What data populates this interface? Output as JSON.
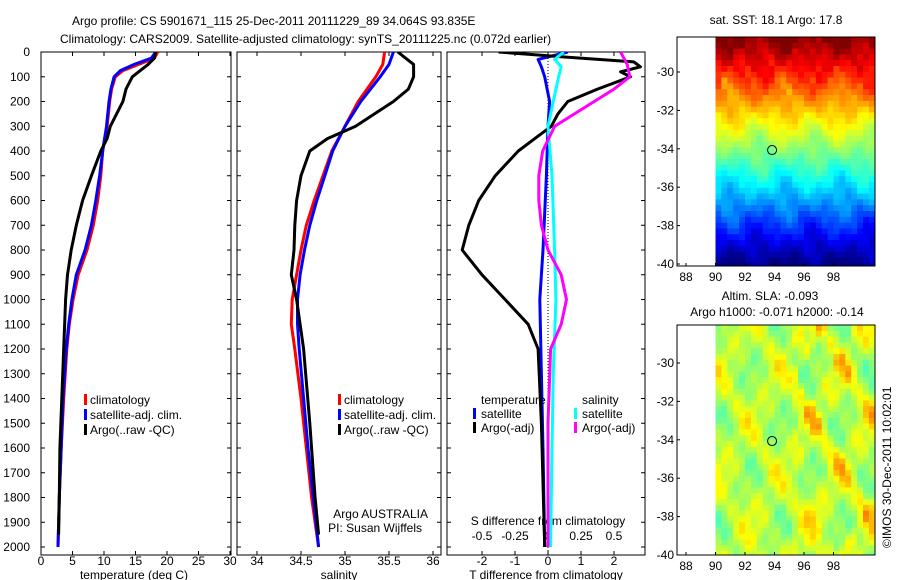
{
  "title": {
    "line1": "Argo profile: CS 5901671_115 25-Dec-2011 20111229_89 34.064S 93.835E",
    "line2": "Climatology: CARS2009. Satellite-adjusted climatology: synTS_20111225.nc (0.072d earlier)"
  },
  "depth_ticks": [
    "0",
    "100",
    "200",
    "300",
    "400",
    "500",
    "600",
    "700",
    "800",
    "900",
    "1000",
    "1100",
    "1200",
    "1300",
    "1400",
    "1500",
    "1600",
    "1700",
    "1800",
    "1900",
    "2000"
  ],
  "colors": {
    "climatology": "#ff0000",
    "satellite": "#0000ff",
    "argo": "#000000",
    "sal_satellite": "#00ffff",
    "sal_argo": "#ff00ff"
  },
  "chart_data": [
    {
      "type": "line",
      "title": "",
      "xlabel": "temperature (deg C)",
      "ylabel": "depth",
      "xlim": [
        -1.5,
        31.5
      ],
      "ylim": [
        2030,
        0
      ],
      "xticks": [
        "0",
        "5",
        "10",
        "15",
        "20",
        "25",
        "30"
      ],
      "legend": [
        "climatology",
        "satellite-adj. clim.",
        "Argo(..raw -QC)"
      ],
      "series": [
        {
          "name": "climatology",
          "color": "#ff0000",
          "depth": [
            0,
            25,
            50,
            75,
            100,
            150,
            200,
            300,
            350,
            400,
            500,
            600,
            700,
            800,
            900,
            1000,
            1100,
            1200,
            1400,
            1600,
            1800,
            2000
          ],
          "values": [
            18.5,
            18,
            15.5,
            13,
            11.8,
            11.2,
            10.9,
            10.5,
            10.1,
            9.8,
            9.5,
            9,
            8.3,
            7.3,
            5.9,
            5.1,
            4.5,
            4.1,
            3.6,
            3.2,
            2.9,
            2.7
          ]
        },
        {
          "name": "satellite-adj. clim.",
          "color": "#0000ff",
          "depth": [
            0,
            25,
            50,
            75,
            100,
            150,
            200,
            300,
            350,
            400,
            500,
            600,
            700,
            800,
            900,
            1000,
            1100,
            1200,
            1400,
            1600,
            1800,
            2000
          ],
          "values": [
            18.2,
            17.5,
            14.8,
            12.6,
            11.6,
            11.1,
            10.8,
            10.4,
            10.1,
            9.8,
            9.3,
            8.7,
            8.0,
            7.0,
            5.6,
            4.9,
            4.4,
            4.0,
            3.5,
            3.2,
            2.9,
            2.7
          ]
        },
        {
          "name": "Argo(..raw -QC)",
          "color": "#000000",
          "depth": [
            0,
            25,
            50,
            100,
            150,
            200,
            250,
            300,
            350,
            400,
            500,
            600,
            700,
            800,
            900,
            1000,
            1200,
            1400,
            1600,
            1800,
            1950
          ],
          "values": [
            18.2,
            18,
            17,
            14.5,
            13.5,
            13,
            12,
            11,
            10.5,
            9.5,
            8,
            6.6,
            5.6,
            4.8,
            4.2,
            3.9,
            3.6,
            3.3,
            3.0,
            2.9,
            2.8
          ]
        }
      ]
    },
    {
      "type": "line",
      "xlabel": "salinity",
      "xlim": [
        33.77,
        36.1
      ],
      "ylim": [
        2030,
        0
      ],
      "xticks": [
        "34",
        "34.5",
        "35",
        "35.5",
        "36"
      ],
      "legend": [
        "climatology",
        "satellite-adj. clim.",
        "Argo(..raw -QC)"
      ],
      "annotation": [
        "Argo AUSTRALIA",
        "PI: Susan Wijffels"
      ],
      "series": [
        {
          "name": "climatology",
          "color": "#ff0000",
          "depth": [
            0,
            50,
            100,
            200,
            300,
            400,
            500,
            600,
            700,
            800,
            900,
            1000,
            1100,
            1200,
            1400,
            1600,
            1800,
            2000
          ],
          "values": [
            35.45,
            35.43,
            35.35,
            35.15,
            35.0,
            34.85,
            34.75,
            34.65,
            34.56,
            34.5,
            34.45,
            34.4,
            34.39,
            34.43,
            34.5,
            34.56,
            34.62,
            34.7
          ]
        },
        {
          "name": "satellite-adj. clim.",
          "color": "#0000ff",
          "depth": [
            0,
            50,
            100,
            200,
            300,
            400,
            500,
            600,
            700,
            800,
            900,
            1000,
            1100,
            1200,
            1400,
            1600,
            1800,
            2000
          ],
          "values": [
            35.55,
            35.5,
            35.4,
            35.18,
            35.0,
            34.86,
            34.77,
            34.68,
            34.6,
            34.54,
            34.49,
            34.46,
            34.46,
            34.48,
            34.53,
            34.58,
            34.64,
            34.7
          ]
        },
        {
          "name": "Argo(..raw -QC)",
          "color": "#000000",
          "depth": [
            0,
            50,
            100,
            150,
            200,
            300,
            350,
            400,
            500,
            600,
            700,
            800,
            900,
            1000,
            1200,
            1500,
            1800,
            1950
          ],
          "values": [
            35.6,
            35.78,
            35.78,
            35.72,
            35.55,
            35.12,
            34.8,
            34.6,
            34.5,
            34.45,
            34.43,
            34.42,
            34.39,
            34.45,
            34.53,
            34.6,
            34.66,
            34.7
          ]
        }
      ]
    },
    {
      "type": "line",
      "xlabel": "T difference from climatology",
      "x2label": "S difference from climatology",
      "xlim": [
        -3.05,
        2.95
      ],
      "x2lim": [
        -0.7625,
        0.7375
      ],
      "ylim": [
        2030,
        0
      ],
      "xticks": [
        "-2",
        "-1",
        "0",
        "1",
        "2"
      ],
      "x2ticks": [
        "-0.5",
        "-0.25",
        "0",
        "0.25",
        "0.5"
      ],
      "legend_temperature": {
        "heading": "temperature",
        "items": [
          "satellite",
          "Argo(-adj)"
        ]
      },
      "legend_salinity": {
        "heading": "salinity",
        "items": [
          "satellite",
          "Argo(-adj)"
        ]
      },
      "series": [
        {
          "name": "temperature satellite",
          "color": "#0000ff",
          "axis": "T",
          "depth": [
            0,
            30,
            60,
            100,
            200,
            300,
            500,
            800,
            1000,
            1300,
            1600,
            2000
          ],
          "values": [
            0.6,
            -0.3,
            -0.2,
            -0.1,
            0.05,
            0,
            -0.05,
            -0.15,
            -0.25,
            -0.2,
            -0.15,
            -0.1
          ]
        },
        {
          "name": "temperature Argo(-adj)",
          "color": "#000000",
          "axis": "T",
          "depth": [
            0,
            20,
            40,
            60,
            80,
            100,
            150,
            200,
            250,
            300,
            350,
            400,
            500,
            600,
            700,
            800,
            900,
            1000,
            1100,
            1200,
            1500,
            2000
          ],
          "values": [
            -1.5,
            0.5,
            2.6,
            2.8,
            2.2,
            2.5,
            1.5,
            0.6,
            0.3,
            0.1,
            -0.4,
            -0.9,
            -1.6,
            -2.1,
            -2.4,
            -2.6,
            -2.0,
            -1.3,
            -0.6,
            -0.3,
            -0.2,
            -0.1
          ]
        },
        {
          "name": "salinity satellite",
          "color": "#00ffff",
          "axis": "S",
          "depth": [
            0,
            30,
            60,
            100,
            200,
            300,
            500,
            800,
            1000,
            1300,
            1600,
            2000
          ],
          "values": [
            0.12,
            0.05,
            0.1,
            0.08,
            0.04,
            0.0,
            0.03,
            0.05,
            0.06,
            0.04,
            0.03,
            0.02
          ]
        },
        {
          "name": "salinity Argo(-adj)",
          "color": "#ff00ff",
          "axis": "S",
          "depth": [
            0,
            50,
            100,
            150,
            200,
            250,
            300,
            400,
            500,
            600,
            700,
            800,
            900,
            1000,
            1100,
            1200,
            1500,
            2000
          ],
          "values": [
            0.55,
            0.6,
            0.62,
            0.5,
            0.35,
            0.2,
            0.05,
            -0.04,
            -0.07,
            -0.07,
            -0.05,
            0.0,
            0.1,
            0.14,
            0.1,
            0.02,
            0.0,
            0.0
          ]
        }
      ]
    }
  ],
  "maps": [
    {
      "title": "sat. SST: 18.1  Argo: 17.8",
      "xticks": [
        "88",
        "90",
        "92",
        "94",
        "96",
        "98"
      ],
      "yticks": [
        "-30",
        "-32",
        "-34",
        "-36",
        "-38",
        "-40"
      ],
      "marker": {
        "lon": 93.835,
        "lat": -34.064
      }
    },
    {
      "title1": "Altim. SLA: -0.093",
      "title2": "Argo h1000: -0.071 h2000: -0.14",
      "xticks": [
        "88",
        "90",
        "92",
        "94",
        "96",
        "98"
      ],
      "yticks": [
        "-30",
        "-32",
        "-34",
        "-36",
        "-38",
        "-40"
      ],
      "marker": {
        "lon": 93.835,
        "lat": -34.064
      }
    }
  ],
  "copyright": "©IMOS 30-Dec-2011 10:02:01"
}
